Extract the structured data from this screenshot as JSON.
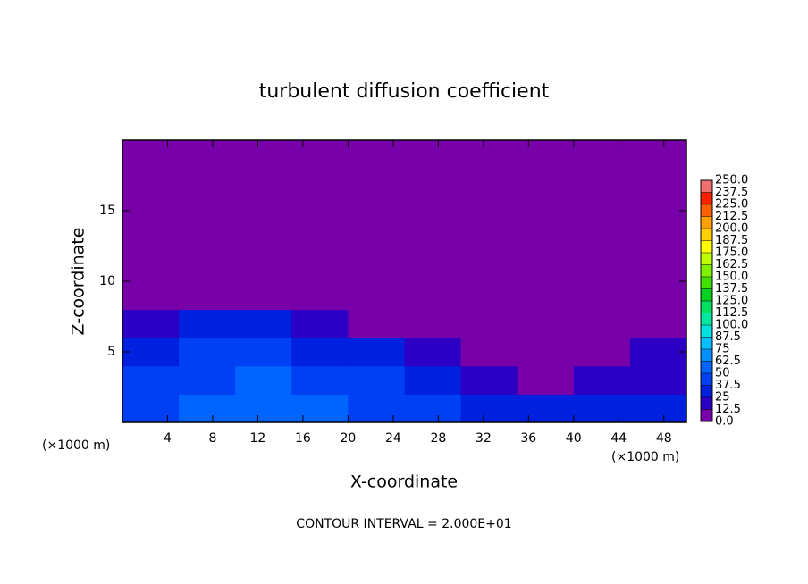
{
  "chart_data": {
    "type": "heatmap",
    "title": "turbulent diffusion coefficient",
    "xlabel": "X-coordinate",
    "ylabel": "Z-coordinate",
    "annotations": [
      "(×1000 m)",
      "(×1000 m)",
      "CONTOUR INTERVAL = 2.000E+01"
    ],
    "xlim": [
      0,
      50
    ],
    "xticks": [
      4,
      8,
      12,
      16,
      20,
      24,
      28,
      32,
      36,
      40,
      44,
      48
    ],
    "ylim": [
      0,
      20
    ],
    "yticks": [
      5,
      10,
      15
    ],
    "xbins": [
      0,
      5,
      10,
      15,
      20,
      25,
      30,
      35,
      40,
      45,
      50
    ],
    "zbins": [
      0,
      2,
      4,
      6,
      8,
      20
    ],
    "field": [
      [
        45,
        50,
        55,
        50,
        45,
        40,
        35,
        30,
        25,
        30
      ],
      [
        40,
        45,
        50,
        45,
        40,
        35,
        15,
        10,
        15,
        20
      ],
      [
        35,
        40,
        40,
        35,
        30,
        20,
        5,
        5,
        10,
        15
      ],
      [
        20,
        25,
        25,
        20,
        10,
        5,
        0,
        0,
        5,
        10
      ],
      [
        0,
        0,
        0,
        0,
        0,
        0,
        0,
        0,
        0,
        0
      ]
    ],
    "levels": [
      {
        "value": 0,
        "label": "0.0"
      },
      12.5,
      25,
      37.5,
      50,
      62.5,
      75,
      87.5,
      {
        "value": 100,
        "label": "100.0"
      },
      112.5,
      {
        "value": 125,
        "label": "125.0"
      },
      137.5,
      {
        "value": 150,
        "label": "150.0"
      },
      162.5,
      {
        "value": 175,
        "label": "175.0"
      },
      187.5,
      {
        "value": 200,
        "label": "200.0"
      },
      212.5,
      {
        "value": 225,
        "label": "225.0"
      },
      237.5,
      {
        "value": 250,
        "label": "250.0"
      }
    ],
    "colors": [
      "#7800a8",
      "#2c00c4",
      "#0020e0",
      "#0040f4",
      "#0064ff",
      "#0090ff",
      "#00c0ff",
      "#00e0e0",
      "#00e8a0",
      "#00e060",
      "#00d020",
      "#40e000",
      "#80f000",
      "#c0ff00",
      "#ffff00",
      "#ffd000",
      "#ffa000",
      "#ff6000",
      "#ff2000",
      "#f07070"
    ]
  }
}
